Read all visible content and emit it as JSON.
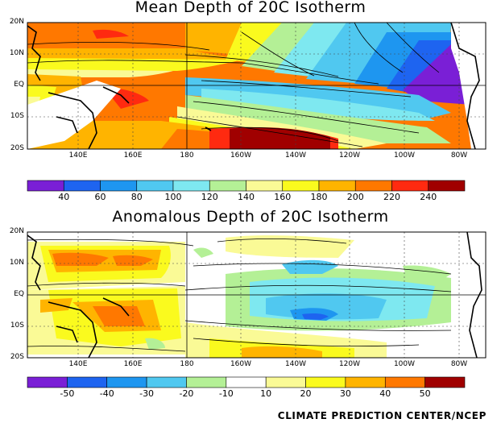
{
  "panels": [
    {
      "title": "Mean Depth of 20C Isotherm",
      "lat_labels": [
        "20N",
        "10N",
        "EQ",
        "10S",
        "20S"
      ],
      "lon_labels": [
        "140E",
        "160E",
        "180",
        "160W",
        "140W",
        "120W",
        "100W",
        "80W"
      ],
      "colorbar": {
        "labels": [
          "40",
          "60",
          "80",
          "100",
          "120",
          "140",
          "160",
          "180",
          "200",
          "220",
          "240"
        ],
        "colors": [
          "#7a1fd6",
          "#1e64f0",
          "#1e96f0",
          "#50c8f0",
          "#7ee8f0",
          "#b4f096",
          "#fafa96",
          "#fafa1e",
          "#ffb400",
          "#ff7800",
          "#ff2a10",
          "#a00000"
        ]
      }
    },
    {
      "title": "Anomalous Depth of 20C Isotherm",
      "lat_labels": [
        "20N",
        "10N",
        "EQ",
        "10S",
        "20S"
      ],
      "lon_labels": [
        "140E",
        "160E",
        "180",
        "160W",
        "140W",
        "120W",
        "100W",
        "80W"
      ],
      "colorbar": {
        "labels": [
          "-50",
          "-40",
          "-30",
          "-20",
          "-10",
          "10",
          "20",
          "30",
          "40",
          "50"
        ],
        "colors": [
          "#7a1fd6",
          "#1e64f0",
          "#1e96f0",
          "#50c8f0",
          "#b4f096",
          "#ffffff",
          "#fafa96",
          "#fafa1e",
          "#ffb400",
          "#ff7800",
          "#a00000"
        ]
      }
    }
  ],
  "credit": "CLIMATE PREDICTION CENTER/NCEP"
}
